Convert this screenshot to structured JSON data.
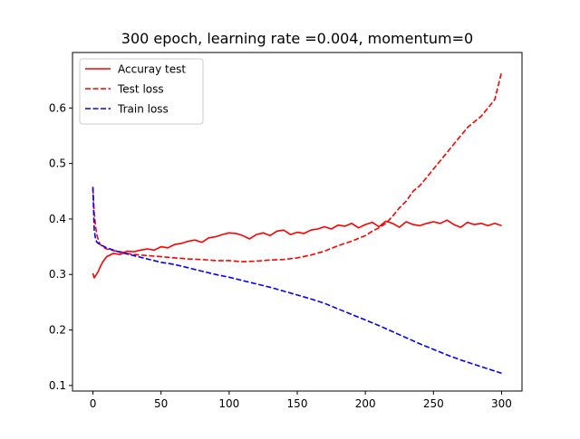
{
  "chart_data": {
    "type": "line",
    "title": "300 epoch, learning rate =0.004, momentum=0",
    "xlabel": "",
    "ylabel": "",
    "xlim": [
      -15,
      315
    ],
    "ylim": [
      0.09,
      0.7
    ],
    "xticks": [
      0,
      50,
      100,
      150,
      200,
      250,
      300
    ],
    "yticks": [
      0.1,
      0.2,
      0.3,
      0.4,
      0.5,
      0.6
    ],
    "xtick_labels": [
      "0",
      "50",
      "100",
      "150",
      "200",
      "250",
      "300"
    ],
    "ytick_labels": [
      "0.1",
      "0.2",
      "0.3",
      "0.4",
      "0.5",
      "0.6"
    ],
    "grid": false,
    "legend_position": "top-left",
    "series": [
      {
        "name": "Accuray test",
        "color": "#ff0000",
        "linestyle": "solid",
        "x": [
          0,
          1,
          2,
          3,
          4,
          5,
          7,
          10,
          15,
          20,
          25,
          30,
          35,
          40,
          45,
          50,
          55,
          60,
          65,
          70,
          75,
          80,
          85,
          90,
          95,
          100,
          105,
          110,
          115,
          120,
          125,
          130,
          135,
          140,
          145,
          150,
          155,
          160,
          165,
          170,
          175,
          180,
          185,
          190,
          195,
          200,
          205,
          210,
          215,
          220,
          225,
          230,
          235,
          240,
          245,
          250,
          255,
          260,
          265,
          270,
          275,
          280,
          285,
          290,
          295,
          300
        ],
        "y": [
          0.302,
          0.294,
          0.298,
          0.302,
          0.306,
          0.312,
          0.322,
          0.332,
          0.338,
          0.336,
          0.342,
          0.341,
          0.344,
          0.346,
          0.344,
          0.35,
          0.348,
          0.354,
          0.356,
          0.36,
          0.362,
          0.358,
          0.366,
          0.368,
          0.372,
          0.375,
          0.374,
          0.37,
          0.364,
          0.372,
          0.375,
          0.37,
          0.378,
          0.38,
          0.372,
          0.376,
          0.374,
          0.38,
          0.382,
          0.386,
          0.382,
          0.389,
          0.387,
          0.392,
          0.384,
          0.39,
          0.394,
          0.386,
          0.396,
          0.392,
          0.385,
          0.395,
          0.39,
          0.388,
          0.392,
          0.395,
          0.392,
          0.398,
          0.39,
          0.385,
          0.394,
          0.39,
          0.392,
          0.388,
          0.392,
          0.388
        ]
      },
      {
        "name": "Test loss",
        "color": "#ff0000",
        "linestyle": "dashed",
        "x": [
          0,
          1,
          2,
          3,
          4,
          5,
          7,
          10,
          15,
          20,
          25,
          30,
          35,
          40,
          45,
          50,
          60,
          70,
          80,
          90,
          100,
          110,
          120,
          130,
          140,
          150,
          160,
          170,
          180,
          190,
          200,
          205,
          210,
          215,
          220,
          225,
          230,
          235,
          240,
          245,
          250,
          255,
          260,
          265,
          270,
          275,
          280,
          285,
          290,
          295,
          300
        ],
        "y": [
          0.455,
          0.41,
          0.385,
          0.37,
          0.362,
          0.355,
          0.35,
          0.346,
          0.343,
          0.341,
          0.338,
          0.336,
          0.335,
          0.334,
          0.333,
          0.332,
          0.33,
          0.328,
          0.327,
          0.325,
          0.325,
          0.323,
          0.324,
          0.326,
          0.327,
          0.33,
          0.335,
          0.342,
          0.352,
          0.36,
          0.37,
          0.378,
          0.384,
          0.392,
          0.405,
          0.42,
          0.432,
          0.45,
          0.46,
          0.475,
          0.49,
          0.505,
          0.52,
          0.535,
          0.55,
          0.565,
          0.575,
          0.585,
          0.6,
          0.615,
          0.665
        ]
      },
      {
        "name": "Train loss",
        "color": "#0000ff",
        "linestyle": "dashed",
        "x": [
          0,
          1,
          2,
          3,
          4,
          5,
          7,
          10,
          15,
          20,
          30,
          40,
          50,
          60,
          70,
          80,
          90,
          100,
          110,
          120,
          130,
          140,
          150,
          160,
          170,
          180,
          190,
          200,
          210,
          220,
          230,
          240,
          250,
          260,
          270,
          280,
          290,
          300
        ],
        "y": [
          0.458,
          0.38,
          0.362,
          0.358,
          0.356,
          0.354,
          0.352,
          0.348,
          0.344,
          0.34,
          0.334,
          0.328,
          0.322,
          0.318,
          0.312,
          0.306,
          0.3,
          0.295,
          0.289,
          0.283,
          0.277,
          0.27,
          0.263,
          0.256,
          0.248,
          0.238,
          0.228,
          0.218,
          0.208,
          0.197,
          0.186,
          0.175,
          0.165,
          0.155,
          0.146,
          0.138,
          0.13,
          0.122
        ]
      }
    ]
  }
}
